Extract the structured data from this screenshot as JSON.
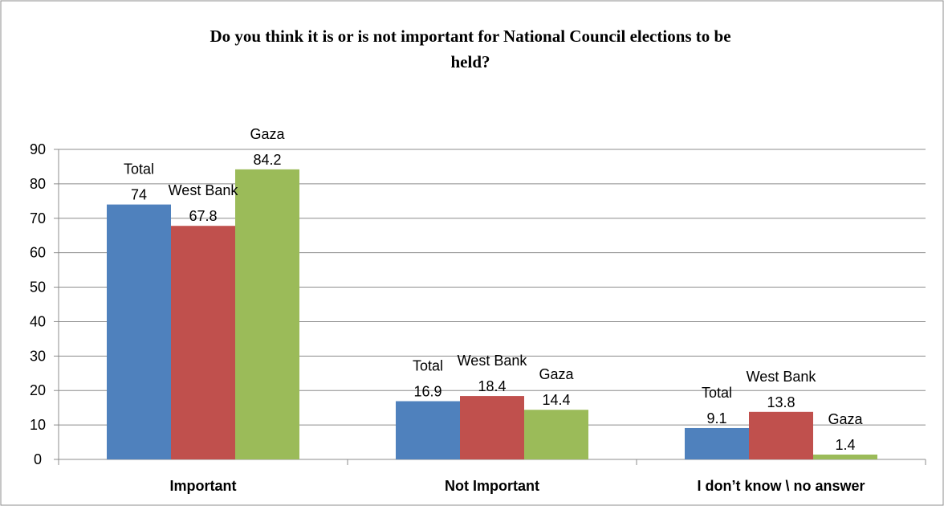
{
  "chart_data": {
    "type": "bar",
    "title_lines": [
      "Do you think it is or is not important for National Council  elections to be",
      "held?"
    ],
    "categories": [
      "Important",
      "Not Important",
      "I don’t know  \\ no answer"
    ],
    "series": [
      {
        "name": "Total",
        "color": "#4f81bd",
        "values": [
          74,
          16.9,
          9.1
        ]
      },
      {
        "name": "West Bank",
        "color": "#c0504d",
        "values": [
          67.8,
          18.4,
          13.8
        ]
      },
      {
        "name": "Gaza",
        "color": "#9bbb59",
        "values": [
          84.2,
          14.4,
          1.4
        ]
      }
    ],
    "ylim": [
      0,
      90
    ],
    "yticks": [
      0,
      10,
      20,
      30,
      40,
      50,
      60,
      70,
      80,
      90
    ],
    "grid": true,
    "legend": "none",
    "data_labels": "series name above value"
  }
}
